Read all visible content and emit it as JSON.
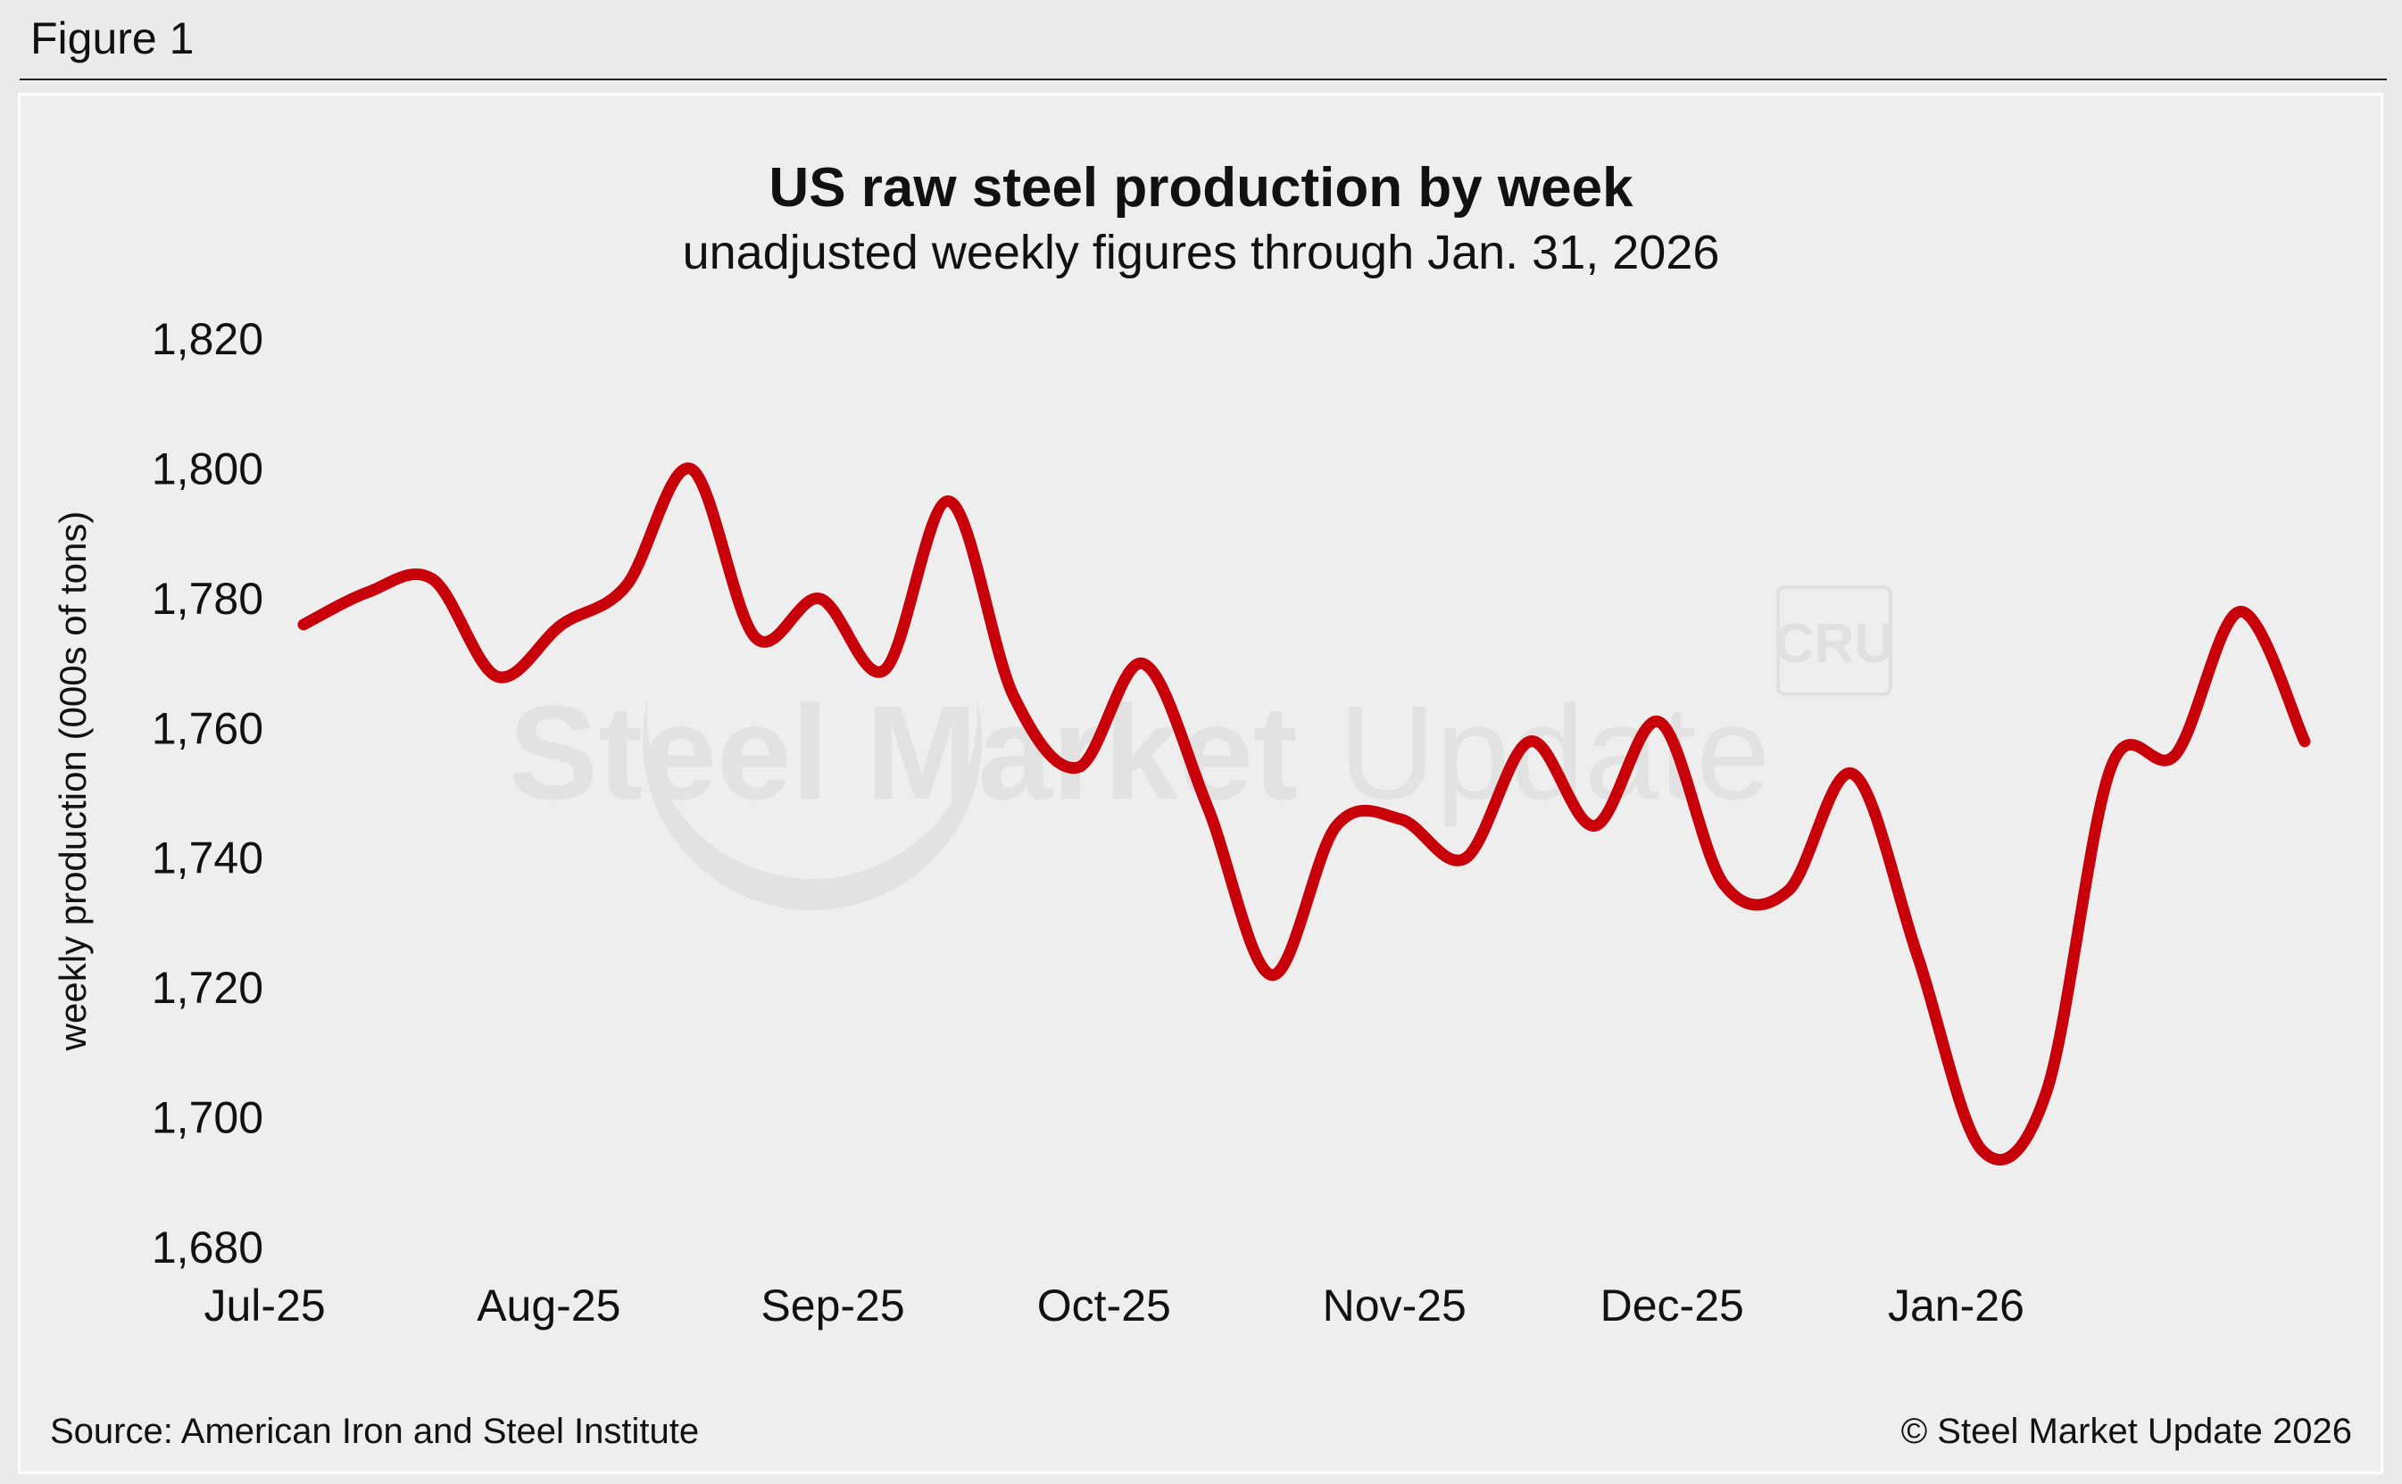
{
  "figure_label": "Figure 1",
  "source_note": "Source: American Iron and Steel Institute",
  "copyright_note": "© Steel Market Update 2026",
  "watermark": {
    "brand_text_bold": "Steel Market",
    "brand_text_light": "Update",
    "badge_text": "CRU"
  },
  "colors": {
    "line": "#c8000a",
    "background": "#eeeeee"
  },
  "chart_data": {
    "type": "line",
    "title": "US raw steel production by week",
    "subtitle": "unadjusted weekly figures through Jan. 31, 2026",
    "xlabel": "",
    "ylabel": "weekly production (000s of tons)",
    "ylim": [
      1680,
      1820
    ],
    "yticks": [
      1680,
      1700,
      1720,
      1740,
      1760,
      1780,
      1800,
      1820
    ],
    "ytick_labels": [
      "1,680",
      "1,700",
      "1,720",
      "1,740",
      "1,760",
      "1,780",
      "1,800",
      "1,820"
    ],
    "xticks": [
      "Jul-25",
      "Aug-25",
      "Sep-25",
      "Oct-25",
      "Nov-25",
      "Dec-25",
      "Jan-26"
    ],
    "grid": false,
    "legend": "none",
    "series": [
      {
        "values": [
          1776,
          1781,
          1783,
          1768,
          1776,
          1782,
          1800,
          1774,
          1780,
          1769,
          1795,
          1765,
          1754,
          1770,
          1748,
          1722,
          1745,
          1746,
          1740,
          1758,
          1745,
          1761,
          1736,
          1735,
          1753,
          1725,
          1695,
          1704,
          1754,
          1756,
          1778,
          1758
        ]
      }
    ]
  }
}
